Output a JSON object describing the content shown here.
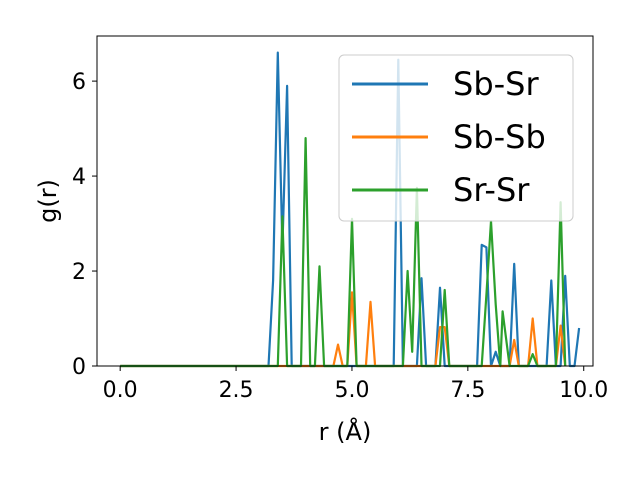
{
  "chart_data": {
    "type": "line",
    "xlabel": "r (Å)",
    "ylabel": "g(r)",
    "xlim": [
      -0.5,
      10.2
    ],
    "ylim": [
      0,
      6.95
    ],
    "xticks": [
      0.0,
      2.5,
      5.0,
      7.5,
      10.0
    ],
    "xtick_labels": [
      "0.0",
      "2.5",
      "5.0",
      "7.5",
      "10.0"
    ],
    "yticks": [
      0,
      2,
      4,
      6
    ],
    "ytick_labels": [
      "0",
      "2",
      "4",
      "6"
    ],
    "grid": false,
    "legend_position": "upper-right",
    "series": [
      {
        "name": "Sb-Sr",
        "color": "#1f77b4",
        "points": [
          [
            0,
            0
          ],
          [
            3.2,
            0
          ],
          [
            3.3,
            1.8
          ],
          [
            3.4,
            6.6
          ],
          [
            3.5,
            2.5
          ],
          [
            3.6,
            5.9
          ],
          [
            3.7,
            0
          ],
          [
            5.9,
            0
          ],
          [
            6.0,
            6.45
          ],
          [
            6.1,
            0
          ],
          [
            6.4,
            0
          ],
          [
            6.5,
            1.85
          ],
          [
            6.6,
            0
          ],
          [
            6.8,
            0
          ],
          [
            6.9,
            1.65
          ],
          [
            7.0,
            0
          ],
          [
            7.7,
            0
          ],
          [
            7.8,
            2.55
          ],
          [
            7.9,
            2.5
          ],
          [
            8.0,
            0
          ],
          [
            8.1,
            0.3
          ],
          [
            8.2,
            0
          ],
          [
            8.4,
            0
          ],
          [
            8.5,
            2.15
          ],
          [
            8.6,
            0
          ],
          [
            9.2,
            0
          ],
          [
            9.3,
            1.8
          ],
          [
            9.4,
            0
          ],
          [
            9.5,
            0
          ],
          [
            9.6,
            1.9
          ],
          [
            9.7,
            0
          ],
          [
            9.8,
            0
          ],
          [
            9.9,
            0.8
          ]
        ]
      },
      {
        "name": "Sb-Sb",
        "color": "#ff7f0e",
        "points": [
          [
            0,
            0
          ],
          [
            4.6,
            0
          ],
          [
            4.7,
            0.45
          ],
          [
            4.8,
            0
          ],
          [
            4.9,
            0
          ],
          [
            5.0,
            1.55
          ],
          [
            5.1,
            0
          ],
          [
            5.3,
            0
          ],
          [
            5.4,
            1.35
          ],
          [
            5.5,
            0
          ],
          [
            6.8,
            0
          ],
          [
            6.9,
            0.82
          ],
          [
            7.0,
            0.82
          ],
          [
            7.1,
            0
          ],
          [
            8.4,
            0
          ],
          [
            8.5,
            0.55
          ],
          [
            8.6,
            0
          ],
          [
            8.8,
            0
          ],
          [
            8.9,
            1.0
          ],
          [
            9.0,
            0
          ],
          [
            9.4,
            0
          ],
          [
            9.5,
            0.85
          ],
          [
            9.6,
            0
          ]
        ]
      },
      {
        "name": "Sr-Sr",
        "color": "#2ca02c",
        "points": [
          [
            0,
            0
          ],
          [
            3.4,
            0
          ],
          [
            3.5,
            3.15
          ],
          [
            3.6,
            0
          ],
          [
            3.9,
            0
          ],
          [
            4.0,
            4.8
          ],
          [
            4.1,
            0
          ],
          [
            4.2,
            0
          ],
          [
            4.3,
            2.1
          ],
          [
            4.4,
            0
          ],
          [
            4.9,
            0
          ],
          [
            5.0,
            3.1
          ],
          [
            5.1,
            0
          ],
          [
            6.1,
            0
          ],
          [
            6.2,
            2.0
          ],
          [
            6.3,
            0.3
          ],
          [
            6.4,
            3.75
          ],
          [
            6.5,
            0
          ],
          [
            6.9,
            0
          ],
          [
            7.0,
            1.6
          ],
          [
            7.1,
            0
          ],
          [
            7.8,
            0
          ],
          [
            7.9,
            1.5
          ],
          [
            8.0,
            3.05
          ],
          [
            8.1,
            1.3
          ],
          [
            8.2,
            0
          ],
          [
            8.25,
            1.15
          ],
          [
            8.4,
            0
          ],
          [
            8.8,
            0
          ],
          [
            8.9,
            0.25
          ],
          [
            9.0,
            0
          ],
          [
            9.4,
            0
          ],
          [
            9.5,
            3.45
          ],
          [
            9.6,
            0
          ]
        ]
      }
    ]
  }
}
